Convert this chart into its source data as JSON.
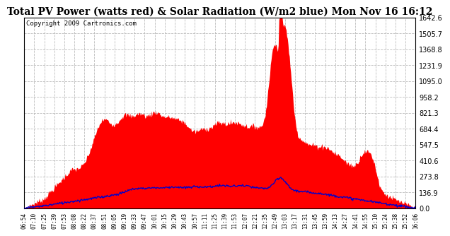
{
  "title": "Total PV Power (watts red) & Solar Radiation (W/m2 blue) Mon Nov 16 16:12",
  "copyright": "Copyright 2009 Cartronics.com",
  "yticks": [
    0.0,
    136.9,
    273.8,
    410.6,
    547.5,
    684.4,
    821.3,
    958.2,
    1095.0,
    1231.9,
    1368.8,
    1505.7,
    1642.6
  ],
  "ylim": [
    0.0,
    1642.6
  ],
  "xtick_labels": [
    "06:54",
    "07:10",
    "07:25",
    "07:39",
    "07:53",
    "08:08",
    "08:22",
    "08:37",
    "08:51",
    "09:05",
    "09:19",
    "09:33",
    "09:47",
    "10:01",
    "10:15",
    "10:29",
    "10:43",
    "10:57",
    "11:11",
    "11:25",
    "11:39",
    "11:53",
    "12:07",
    "12:21",
    "12:35",
    "12:49",
    "13:03",
    "13:17",
    "13:31",
    "13:45",
    "13:59",
    "14:13",
    "14:27",
    "14:41",
    "14:55",
    "15:10",
    "15:24",
    "15:38",
    "15:52",
    "16:06"
  ],
  "bg_color": "#ffffff",
  "plot_bg_color": "#ffffff",
  "grid_color": "#bbbbbb",
  "fill_color": "#ff0000",
  "line_color": "#0000cc",
  "title_fontsize": 10,
  "copyright_fontsize": 6.5
}
